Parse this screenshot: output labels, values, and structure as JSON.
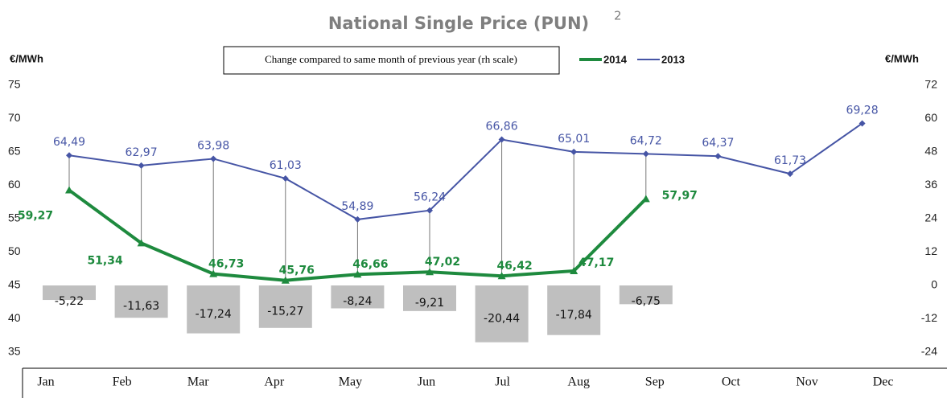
{
  "chart_data": {
    "type": "line",
    "title": "National Single Price (PUN)",
    "title_note": "2",
    "ylabel": "€/MWh",
    "y2label": "€/MWh",
    "bar_legend": "Change compared to same month of previous year (rh scale)",
    "categories": [
      "Jan",
      "Feb",
      "Mar",
      "Apr",
      "May",
      "Jun",
      "Jul",
      "Aug",
      "Sep",
      "Oct",
      "Nov",
      "Dec"
    ],
    "ylim": [
      35,
      75
    ],
    "yticks": [
      35,
      40,
      45,
      50,
      55,
      60,
      65,
      70,
      75
    ],
    "y2lim": [
      -24,
      72
    ],
    "y2ticks": [
      -24,
      -12,
      0,
      12,
      24,
      36,
      48,
      60,
      72
    ],
    "grid": false,
    "series": [
      {
        "name": "Change compared to same month of previous year (rh scale)",
        "kind": "bar",
        "axis": "y2",
        "color": "#bfbfbf",
        "values": [
          -5.22,
          -11.63,
          -17.24,
          -15.27,
          -8.24,
          -9.21,
          -20.44,
          -17.84,
          -6.75,
          null,
          null,
          null
        ],
        "value_labels": [
          "-5,22",
          "-11,63",
          "-17,24",
          "-15,27",
          "-8,24",
          "-9,21",
          "-20,44",
          "-17,84",
          "-6,75",
          null,
          null,
          null
        ]
      },
      {
        "name": "2014",
        "kind": "line",
        "color": "#1e8a3e",
        "values": [
          59.27,
          51.34,
          46.73,
          45.76,
          46.66,
          47.02,
          46.42,
          47.17,
          57.97,
          null,
          null,
          null
        ],
        "value_labels": [
          "59,27",
          "51,34",
          "46,73",
          "45,76",
          "46,66",
          "47,02",
          "46,42",
          "47,17",
          "57,97",
          null,
          null,
          null
        ]
      },
      {
        "name": "2013",
        "kind": "line",
        "color": "#4655a5",
        "values": [
          64.49,
          62.97,
          63.98,
          61.03,
          54.89,
          56.24,
          66.86,
          65.01,
          64.72,
          64.37,
          61.73,
          69.28
        ],
        "value_labels": [
          "64,49",
          "62,97",
          "63,98",
          "61,03",
          "54,89",
          "56,24",
          "66,86",
          "65,01",
          "64,72",
          "64,37",
          "61,73",
          "69,28"
        ]
      }
    ]
  }
}
